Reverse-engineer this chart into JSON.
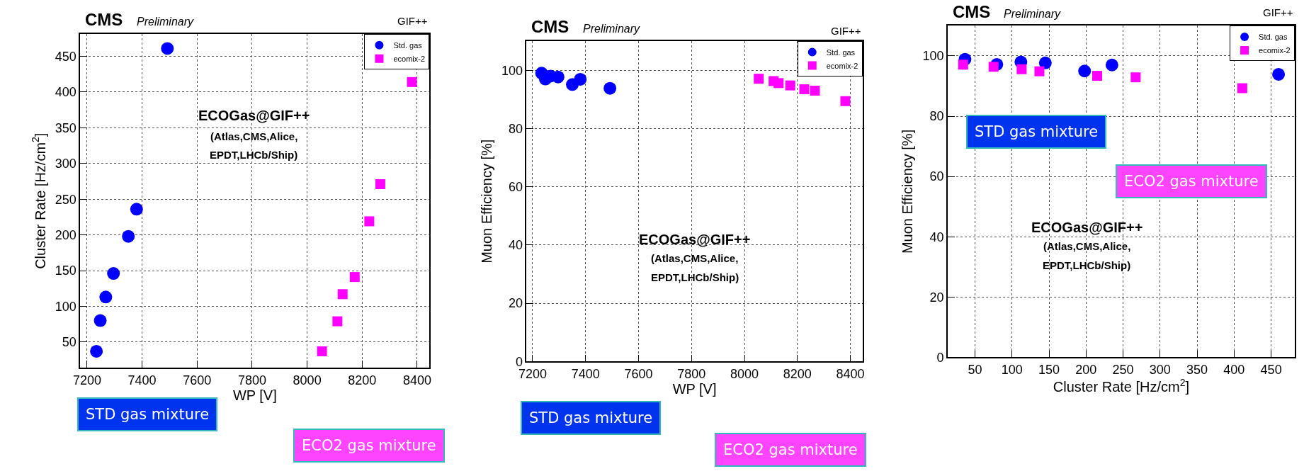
{
  "chart_data": [
    {
      "type": "scatter",
      "title": "CMS",
      "subtitle": "Preliminary",
      "xlabel": "WP [V]",
      "ylabel": "Cluster Rate [Hz/cm$^{2}$]",
      "annotations": [
        "GIF++",
        "ECOGas@GIF++",
        "(Atlas,CMS,Alice,",
        "EPDT,LHCb/Ship)",
        "STD gas mixture",
        "ECO2 gas mixture"
      ],
      "series": [
        {
          "name": "Std. gas",
          "color": "#0000ff",
          "marker": "circle",
          "x": [
            7234,
            7248,
            7268,
            7296,
            7350,
            7380,
            7492
          ],
          "values": [
            37,
            80,
            113,
            146,
            198,
            236,
            461
          ]
        },
        {
          "name": "ecomix-2",
          "color": "#ff00ff",
          "marker": "square",
          "x": [
            8054,
            8110,
            8129,
            8173,
            8226,
            8266,
            8381
          ],
          "values": [
            37,
            79,
            117,
            141,
            219,
            271,
            414
          ]
        }
      ],
      "xlim": [
        7175,
        8445
      ],
      "ylim": [
        14,
        481
      ],
      "xticks": [
        7200,
        7400,
        7600,
        7800,
        8000,
        8200,
        8400
      ],
      "yticks": [
        50,
        100,
        150,
        200,
        250,
        300,
        350,
        400,
        450
      ],
      "grid": true,
      "legend": "top right"
    },
    {
      "type": "scatter",
      "title": "CMS",
      "subtitle": "Preliminary",
      "xlabel": "WP [V]",
      "ylabel": "Muon Efficiency [%]",
      "annotations": [
        "GIF++",
        "ECOGas@GIF++",
        "(Atlas,CMS,Alice,",
        "EPDT,LHCb/Ship)",
        "STD gas mixture",
        "ECO2 gas mixture"
      ],
      "series": [
        {
          "name": "Std. gas",
          "color": "#0000ff",
          "marker": "circle",
          "x": [
            7234,
            7248,
            7268,
            7296,
            7350,
            7380,
            7492
          ],
          "values": [
            99,
            97,
            98,
            97.7,
            95.1,
            96.9,
            93.8
          ]
        },
        {
          "name": "ecomix-2",
          "color": "#ff00ff",
          "marker": "square",
          "x": [
            8054,
            8110,
            8129,
            8173,
            8226,
            8266,
            8381
          ],
          "values": [
            97.1,
            96.3,
            95.6,
            94.8,
            93.5,
            93,
            89.4
          ]
        }
      ],
      "xlim": [
        7177,
        8446
      ],
      "ylim": [
        0,
        110
      ],
      "xticks": [
        7200,
        7400,
        7600,
        7800,
        8000,
        8200,
        8400
      ],
      "yticks": [
        0,
        20,
        40,
        60,
        80,
        100
      ],
      "grid": true,
      "legend": "top right"
    },
    {
      "type": "scatter",
      "title": "CMS",
      "subtitle": "Preliminary",
      "xlabel": "Cluster Rate [Hz/cm$^{2}$]",
      "ylabel": "Muon Efficiency [%]",
      "annotations": [
        "GIF++",
        "ECOGas@GIF++",
        "(Atlas,CMS,Alice,",
        "EPDT,LHCb/Ship)",
        "STD gas mixture",
        "ECO2 gas mixture"
      ],
      "series": [
        {
          "name": "Std. gas",
          "color": "#0000ff",
          "marker": "circle",
          "x": [
            36.5,
            79.5,
            112,
            145,
            198,
            235,
            460
          ],
          "values": [
            98.9,
            97.2,
            98,
            97.7,
            95,
            97,
            93.9
          ]
        },
        {
          "name": "ecomix-2",
          "color": "#ff00ff",
          "marker": "square",
          "x": [
            34,
            75,
            113,
            137,
            215,
            267,
            411
          ],
          "values": [
            97.1,
            96.4,
            95.6,
            94.9,
            93.4,
            92.9,
            89.3
          ]
        }
      ],
      "xlim": [
        13,
        482
      ],
      "ylim": [
        0,
        110
      ],
      "xticks": [
        50,
        100,
        150,
        200,
        250,
        300,
        350,
        400,
        450
      ],
      "yticks": [
        0,
        20,
        40,
        60,
        80,
        100
      ],
      "grid": true,
      "legend": "top right"
    }
  ]
}
